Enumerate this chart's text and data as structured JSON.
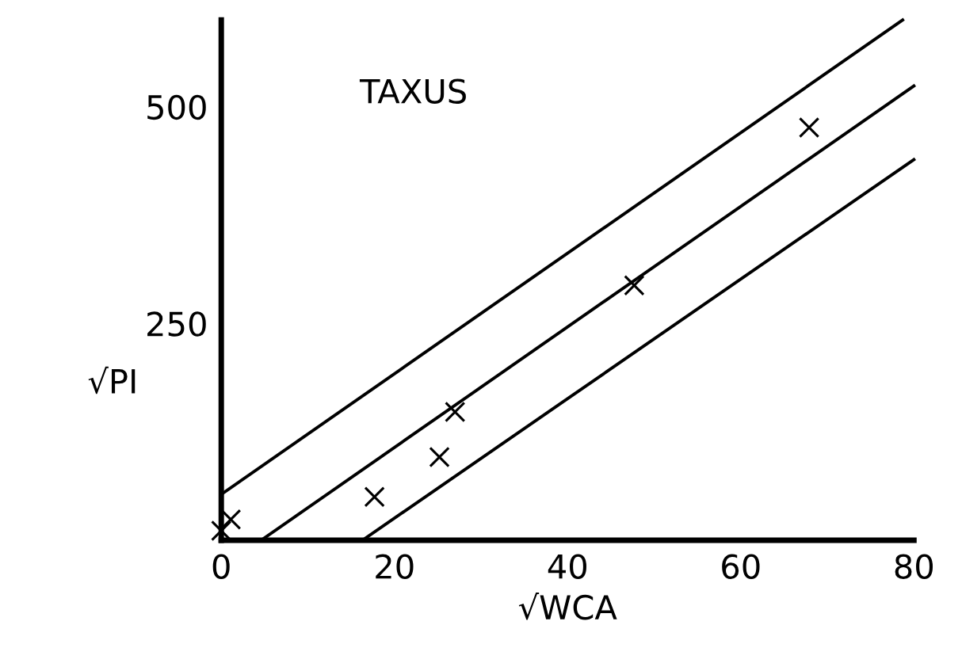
{
  "chart_data": {
    "type": "scatter",
    "xlabel": "√WCA",
    "ylabel": "√PI",
    "annotations": [
      "TAXUS"
    ],
    "xlim": [
      0,
      80
    ],
    "ylim": [
      0,
      600
    ],
    "xticks": [
      0,
      20,
      40,
      60,
      80
    ],
    "yticks": [
      250,
      500
    ],
    "grid": false,
    "legend": false,
    "series": [
      {
        "color": "#000000",
        "marker": "cross",
        "x": [
          0,
          0.5,
          1.1,
          17.7,
          25.2,
          27.0,
          47.7,
          67.9
        ],
        "values": [
          11,
          null,
          24,
          50,
          96,
          148,
          294,
          476
        ]
      },
      {
        "type": "line",
        "color": "#000000",
        "line_style": "solid",
        "x": [
          4.6,
          80
        ],
        "values": [
          0,
          524
        ]
      },
      {
        "type": "line",
        "color": "#000000",
        "line_style": "solid",
        "x": [
          0,
          78.7
        ],
        "values": [
          53,
          600
        ]
      },
      {
        "type": "line",
        "color": "#000000",
        "line_style": "solid",
        "x": [
          16.3,
          80
        ],
        "values": [
          0,
          439
        ]
      }
    ]
  }
}
